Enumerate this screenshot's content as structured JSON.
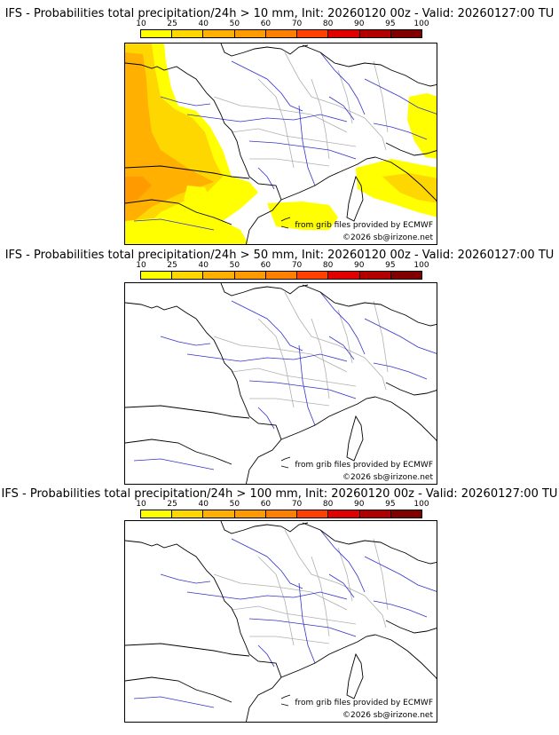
{
  "panels": [
    {
      "title": "IFS - Probabilities total precipitation/24h > 10 mm, Init: 20260120 00z - Valid: 20260127:00 TU",
      "credit_source": "from grib files provided by ECMWF",
      "credit_copyright": "©2026 sb@irizone.net",
      "has_probability_field": true
    },
    {
      "title": "IFS - Probabilities total precipitation/24h > 50 mm, Init: 20260120 00z - Valid: 20260127:00 TU",
      "credit_source": "from grib files provided by ECMWF",
      "credit_copyright": "©2026 sb@irizone.net",
      "has_probability_field": false
    },
    {
      "title": "IFS - Probabilities total precipitation/24h > 100 mm, Init: 20260120 00z - Valid: 20260127:00 TU",
      "credit_source": "from grib files provided by ECMWF",
      "credit_copyright": "©2026 sb@irizone.net",
      "has_probability_field": false
    }
  ],
  "color_scale": {
    "ticks": [
      "10",
      "25",
      "40",
      "50",
      "60",
      "70",
      "80",
      "90",
      "95",
      "100"
    ],
    "colors": [
      "#ffff00",
      "#ffd700",
      "#ffb000",
      "#ff9a00",
      "#ff7f00",
      "#ff4000",
      "#e00000",
      "#b00000",
      "#800000"
    ]
  },
  "map_colors": {
    "coast": "#000000",
    "rivers": "#3333cc",
    "borders": "#b0b0b0",
    "prob_low": "#ffff00",
    "prob_mid": "#ffd700",
    "prob_high": "#ffb000",
    "prob_top": "#ff9a00"
  }
}
